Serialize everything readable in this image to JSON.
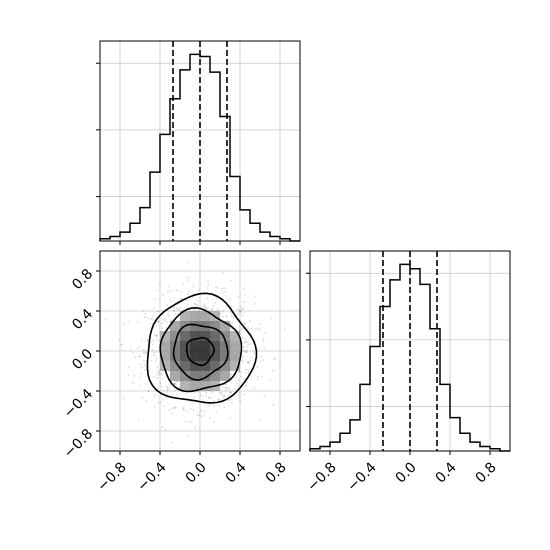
{
  "chart_data": [
    {
      "type": "histogram",
      "panel": "marginal-x",
      "bin_edges": [
        -1.0,
        -0.9,
        -0.8,
        -0.7,
        -0.6,
        -0.5,
        -0.4,
        -0.3,
        -0.2,
        -0.1,
        0.0,
        0.1,
        0.2,
        0.3,
        0.4,
        0.5,
        0.6,
        0.7,
        0.8,
        0.9,
        1.0
      ],
      "counts": [
        1,
        2,
        4,
        8,
        15,
        31,
        48,
        64,
        77,
        84,
        83,
        76,
        56,
        29,
        14,
        8,
        4,
        2,
        1,
        0
      ],
      "quantile_lines": [
        -0.27,
        0.0,
        0.27
      ],
      "xlim": [
        -1.0,
        1.0
      ],
      "ylim": [
        0,
        90
      ],
      "grid": true
    },
    {
      "type": "histogram",
      "panel": "marginal-y",
      "bin_edges": [
        -1.0,
        -0.9,
        -0.8,
        -0.7,
        -0.6,
        -0.5,
        -0.4,
        -0.3,
        -0.2,
        -0.1,
        0.0,
        0.1,
        0.2,
        0.3,
        0.4,
        0.5,
        0.6,
        0.7,
        0.8,
        0.9,
        1.0
      ],
      "counts": [
        1,
        2,
        4,
        8,
        14,
        30,
        47,
        65,
        77,
        84,
        82,
        75,
        55,
        30,
        15,
        8,
        4,
        2,
        1,
        0
      ],
      "quantile_lines": [
        -0.27,
        0.0,
        0.27
      ],
      "xlim": [
        -1.0,
        1.0
      ],
      "ylim": [
        0,
        90
      ],
      "xticks": [
        "−0.8",
        "−0.4",
        "0.0",
        "0.4",
        "0.8"
      ],
      "grid": true
    },
    {
      "type": "heatmap",
      "panel": "joint",
      "xlim": [
        -1.0,
        1.0
      ],
      "ylim": [
        -1.0,
        1.0
      ],
      "xticks": [
        "−0.8",
        "−0.4",
        "0.0",
        "0.4",
        "0.8"
      ],
      "yticks": [
        "−0.8",
        "−0.4",
        "0.0",
        "0.4",
        "0.8"
      ],
      "center": [
        0.0,
        0.0
      ],
      "contour_levels_sigma": [
        0.5,
        1.0,
        1.5,
        2.0
      ],
      "scatter_points": "dense gaussian cloud, sd ≈ 0.27",
      "grid": true
    }
  ]
}
